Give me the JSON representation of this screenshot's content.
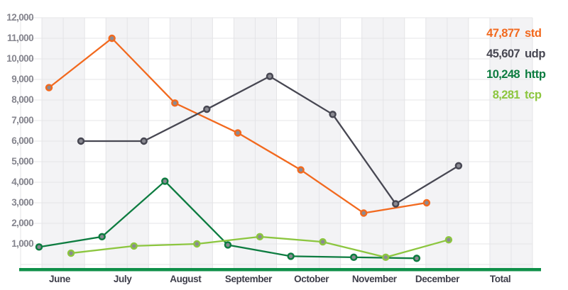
{
  "chart_data": {
    "type": "line",
    "title": "",
    "categories": [
      "June",
      "July",
      "August",
      "September",
      "October",
      "November",
      "December",
      "Total"
    ],
    "y_axis": {
      "min": 0,
      "max": 12000,
      "step": 1000,
      "tick_labels": [
        "1,000",
        "2,000",
        "3,000",
        "4,000",
        "5,000",
        "6,000",
        "7,000",
        "8,000",
        "9,000",
        "10,000",
        "11,000",
        "12,000"
      ]
    },
    "grid": "on",
    "legend_position": "top-right",
    "series": [
      {
        "name": "std",
        "color": "#F2691E",
        "legend_total": "47,877",
        "values": [
          8600,
          11000,
          7850,
          6400,
          4600,
          2500,
          3000
        ]
      },
      {
        "name": "udp",
        "color": "#474752",
        "legend_total": "45,607",
        "values": [
          6000,
          6000,
          7550,
          9150,
          7300,
          2950,
          4800
        ]
      },
      {
        "name": "http",
        "color": "#0D7C40",
        "legend_total": "10,248",
        "values": [
          850,
          1350,
          4050,
          950,
          400,
          350,
          300
        ]
      },
      {
        "name": "tcp",
        "color": "#8CC63F",
        "legend_total": "8,281",
        "values": [
          550,
          900,
          1000,
          1350,
          1100,
          350,
          1200
        ]
      }
    ],
    "colors": {
      "stripe": "#F3F3F5",
      "grid_line": "#E4E4E7",
      "axis_baseline_green": "#0F9049",
      "y_label_text": "#85858E",
      "x_label_text": "#3E3E4A",
      "marker_center": "#8A8A92"
    }
  }
}
